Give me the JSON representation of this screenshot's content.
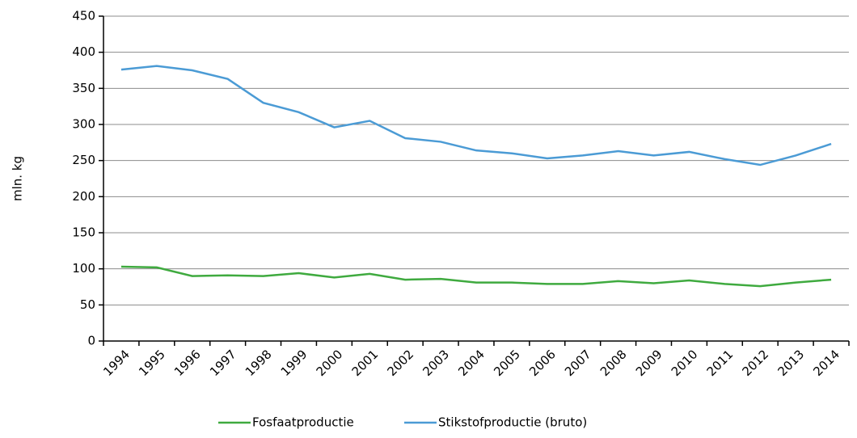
{
  "chart_data": {
    "type": "line",
    "y_label": "mln. kg",
    "categories": [
      "1994",
      "1995",
      "1996",
      "1997",
      "1998",
      "1999",
      "2000",
      "2001",
      "2002",
      "2003",
      "2004",
      "2005",
      "2006",
      "2007",
      "2008",
      "2009",
      "2010",
      "2011",
      "2012",
      "2013",
      "2014"
    ],
    "series": [
      {
        "name": "Fosfaatproductie",
        "color": "#3faa3f",
        "values": [
          103,
          102,
          90,
          91,
          90,
          94,
          88,
          93,
          85,
          86,
          81,
          81,
          79,
          79,
          83,
          80,
          84,
          79,
          76,
          81,
          85
        ]
      },
      {
        "name": "Stikstofproductie (bruto)",
        "color": "#4b9bd5",
        "values": [
          376,
          381,
          375,
          363,
          330,
          317,
          296,
          305,
          281,
          276,
          264,
          260,
          253,
          257,
          263,
          257,
          262,
          252,
          244,
          257,
          273
        ]
      }
    ],
    "ylim": [
      0,
      450
    ],
    "yticks": [
      0,
      50,
      100,
      150,
      200,
      250,
      300,
      350,
      400,
      450
    ],
    "grid": true,
    "legend": "bottom"
  }
}
